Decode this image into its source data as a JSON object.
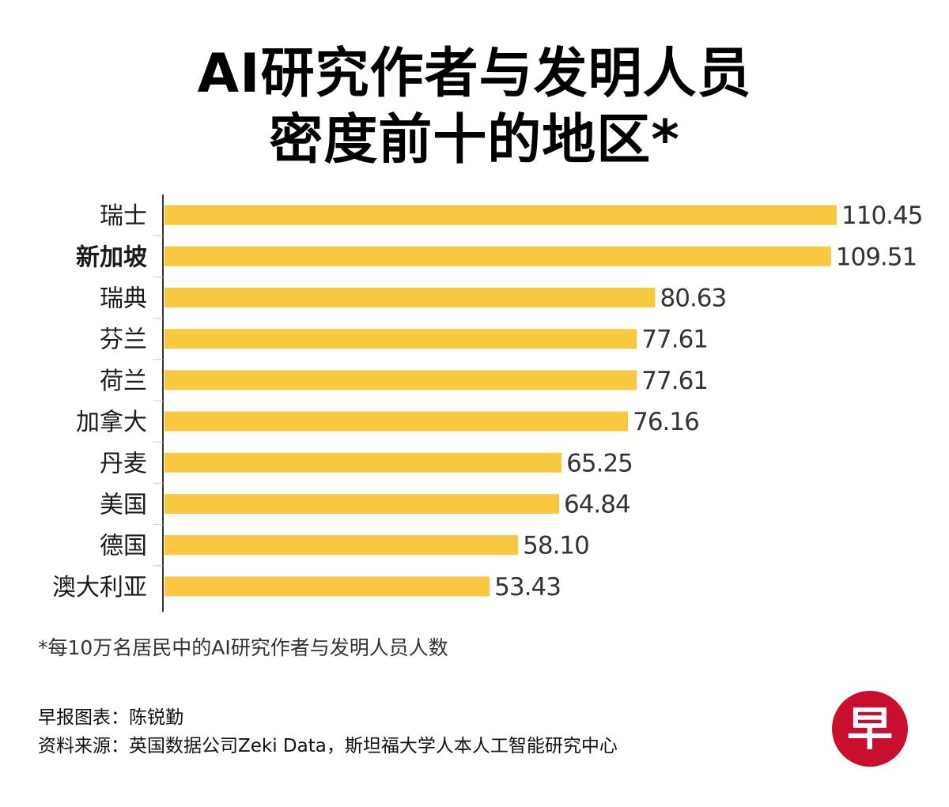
{
  "title_lines": [
    "AI研究作者与发明人员",
    "密度前十的地区*"
  ],
  "footnote": "*每10万名居民中的AI研究作者与发明人员人数",
  "credits": {
    "chart_by": "早报图表：陈锐勤",
    "source": "资料来源：英国数据公司Zeki Data，斯坦福大学人本人工智能研究中心"
  },
  "logo_text": "早",
  "colors": {
    "bar": "#f9c841",
    "axis": "#333333",
    "logo": "#c8102e"
  },
  "chart_data": {
    "type": "bar",
    "orientation": "horizontal",
    "title": "AI研究作者与发明人员密度前十的地区*",
    "categories": [
      "瑞士",
      "新加坡",
      "瑞典",
      "芬兰",
      "荷兰",
      "加拿大",
      "丹麦",
      "美国",
      "德国",
      "澳大利亚"
    ],
    "value_labels": [
      "110.45",
      "109.51",
      "80.63",
      "77.61",
      "77.61",
      "76.16",
      "65.25",
      "64.84",
      "58.10",
      "53.43"
    ],
    "values": [
      110.45,
      109.51,
      80.63,
      77.61,
      77.61,
      76.16,
      65.25,
      64.84,
      58.1,
      53.43
    ],
    "highlight_category": "新加坡",
    "xlim": [
      0,
      110.45
    ],
    "grid": false,
    "legend": "none"
  }
}
